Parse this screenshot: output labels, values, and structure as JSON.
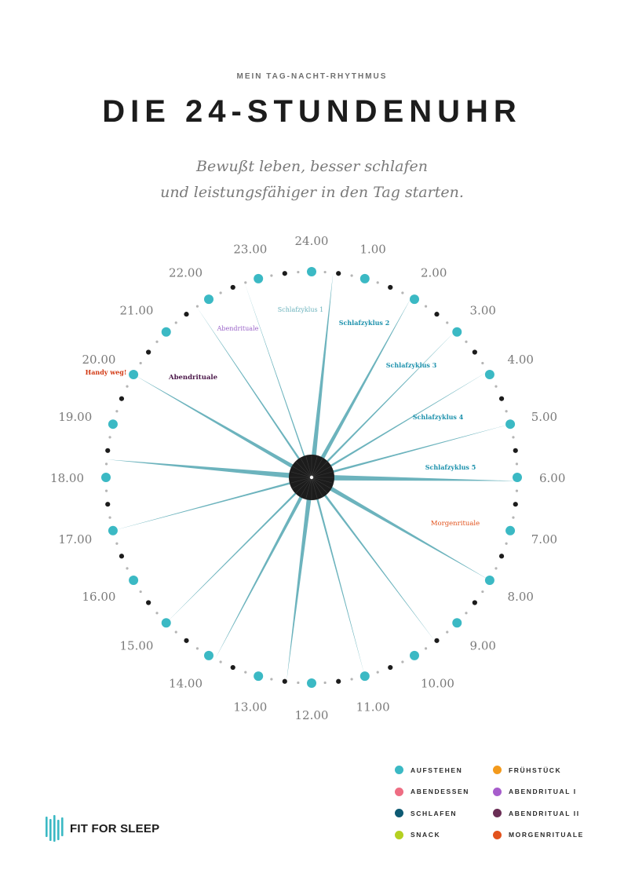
{
  "header": {
    "kicker": "MEIN TAG-NACHT-RHYTHMUS",
    "title": "DIE 24-STUNDENUHR",
    "subtitle_line1": "Bewußt leben, besser schlafen",
    "subtitle_line2": "und leistungsfähiger in den Tag starten."
  },
  "colors": {
    "teal": "#3bb9c4",
    "spoke": "#6cb3bd",
    "hub": "#1c1c1c",
    "dot_dark": "#1c1c1c",
    "dot_gray": "#b5b5b5",
    "hour_label": "#7a7a7a",
    "cycle_label": "#1e92ad",
    "abend_light": "#9a64c8",
    "abend_dark": "#4a1648",
    "morning": "#e2521c",
    "handy": "#d23a14"
  },
  "clock": {
    "hour_labels": [
      "24.00",
      "1.00",
      "2.00",
      "3.00",
      "4.00",
      "5.00",
      "6.00",
      "7.00",
      "8.00",
      "9.00",
      "10.00",
      "11.00",
      "12.00",
      "13.00",
      "14.00",
      "15.00",
      "16.00",
      "17.00",
      "18.00",
      "19.00",
      "20.00",
      "21.00",
      "22.00",
      "23.00"
    ],
    "annotations": {
      "schlafzyklus_1": "Schlafzyklus 1",
      "schlafzyklus_2": "Schlafzyklus 2",
      "schlafzyklus_3": "Schlafzyklus 3",
      "schlafzyklus_4": "Schlafzyklus 4",
      "schlafzyklus_5": "Schlafzyklus 5",
      "morgenrituale": "Morgenrituale",
      "abendrituale_1": "Abendrituale",
      "abendrituale_2": "Abendrituale",
      "handy_weg": "Handy weg!"
    }
  },
  "legend": [
    {
      "label": "AUFSTEHEN",
      "color": "#3bb9c4"
    },
    {
      "label": "FRÜHSTÜCK",
      "color": "#f39a1c"
    },
    {
      "label": "ABENDESSEN",
      "color": "#ee6d83"
    },
    {
      "label": "ABENDRITUAL I",
      "color": "#a75dcc"
    },
    {
      "label": "SCHLAFEN",
      "color": "#0e5a73"
    },
    {
      "label": "ABENDRITUAL II",
      "color": "#6a2e55"
    },
    {
      "label": "SNACK",
      "color": "#b4d021"
    },
    {
      "label": "MORGENRITUALE",
      "color": "#e2521c"
    }
  ],
  "logo": {
    "text": "FIT FOR SLEEP",
    "color": "#3bb9c4"
  }
}
